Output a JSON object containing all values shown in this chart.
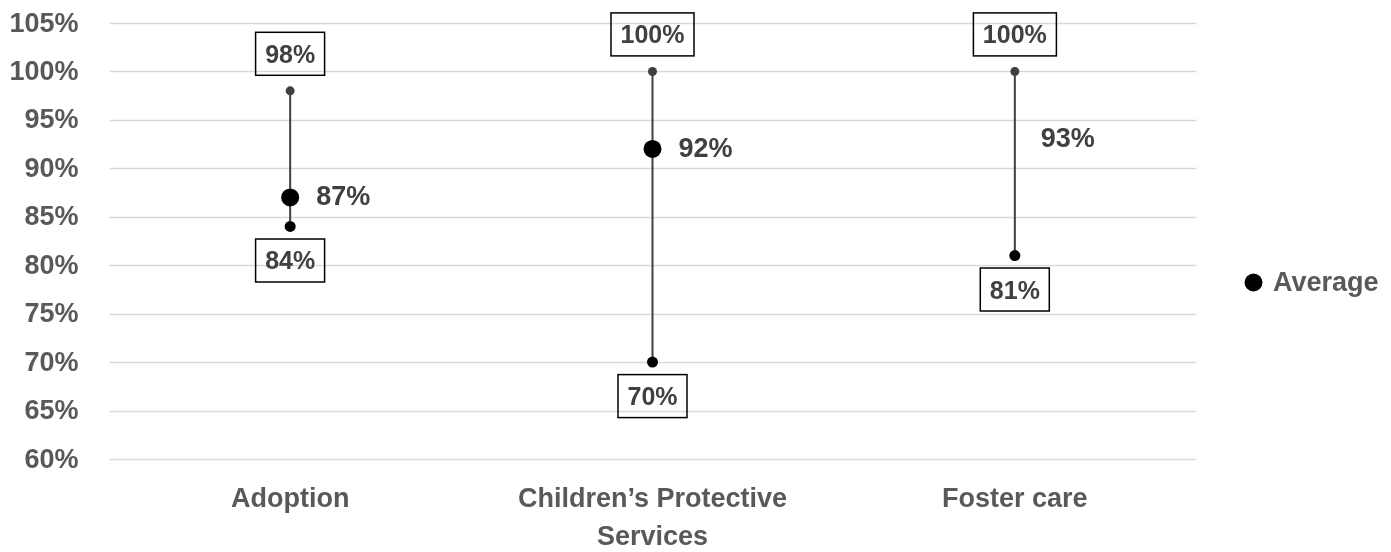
{
  "chart_data": {
    "type": "scatter",
    "categories": [
      "Adoption",
      "Children’s Protective Services",
      "Foster care"
    ],
    "series": [
      {
        "type": "line",
        "x": [
          "Adoption",
          "Adoption"
        ],
        "values": [
          84,
          98
        ],
        "color": "#404040",
        "marker": "none"
      },
      {
        "type": "line",
        "x": [
          "Children’s Protective Services",
          "Children’s Protective Services"
        ],
        "values": [
          70,
          100
        ],
        "color": "#404040",
        "marker": "none"
      },
      {
        "type": "line",
        "x": [
          "Foster care",
          "Foster care"
        ],
        "values": [
          81,
          100
        ],
        "color": "#404040",
        "marker": "none"
      },
      {
        "values": [
          98,
          100,
          100
        ],
        "color": "#404040",
        "value_labels": [
          "98%",
          "100%",
          "100%"
        ]
      },
      {
        "values": [
          84,
          70,
          81
        ],
        "color": "#000000",
        "value_labels": [
          "84%",
          "70%",
          "81%"
        ]
      },
      {
        "name": "Average",
        "values": [
          87,
          92,
          null
        ],
        "color": "#000000",
        "value_labels": [
          "87%",
          "92%",
          null
        ]
      }
    ],
    "annotations": [
      {
        "text": "93%",
        "x": "Foster care",
        "y": 93
      }
    ],
    "ylim": [
      60,
      105
    ],
    "yticks": [
      {
        "value": 60,
        "label": "60%"
      },
      {
        "value": 65,
        "label": "65%"
      },
      {
        "value": 70,
        "label": "70%"
      },
      {
        "value": 75,
        "label": "75%"
      },
      {
        "value": 80,
        "label": "80%"
      },
      {
        "value": 85,
        "label": "85%"
      },
      {
        "value": 90,
        "label": "90%"
      },
      {
        "value": 95,
        "label": "95%"
      },
      {
        "value": 100,
        "label": "100%"
      },
      {
        "value": 105,
        "label": "105%"
      }
    ],
    "grid": "y",
    "legend": "right",
    "marker": "circle"
  }
}
